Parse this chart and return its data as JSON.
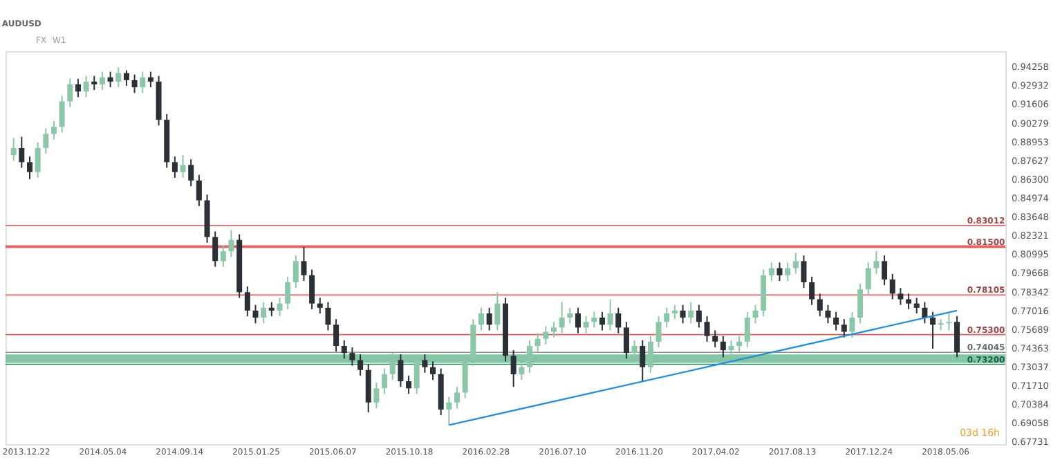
{
  "chart_data": {
    "type": "candlestick",
    "title": "AUDUSD",
    "annotations": [
      "FX",
      "W1",
      "03d 16h"
    ],
    "x": [
      "2013-12-01",
      "2013-12-15",
      "2013-12-29",
      "2014-01-12",
      "2014-01-26",
      "2014-02-09",
      "2014-02-23",
      "2014-03-09",
      "2014-03-23",
      "2014-04-06",
      "2014-04-20",
      "2014-05-04",
      "2014-05-18",
      "2014-06-01",
      "2014-06-15",
      "2014-06-29",
      "2014-07-13",
      "2014-07-27",
      "2014-08-10",
      "2014-08-24",
      "2014-09-07",
      "2014-09-21",
      "2014-10-05",
      "2014-10-19",
      "2014-11-02",
      "2014-11-16",
      "2014-11-30",
      "2014-12-14",
      "2014-12-28",
      "2015-01-11",
      "2015-01-25",
      "2015-02-08",
      "2015-02-22",
      "2015-03-08",
      "2015-03-22",
      "2015-04-05",
      "2015-04-19",
      "2015-05-03",
      "2015-05-17",
      "2015-05-31",
      "2015-06-14",
      "2015-06-28",
      "2015-07-12",
      "2015-07-26",
      "2015-08-09",
      "2015-08-23",
      "2015-09-06",
      "2015-09-20",
      "2015-10-04",
      "2015-10-18",
      "2015-11-01",
      "2015-11-15",
      "2015-11-29",
      "2015-12-13",
      "2015-12-27",
      "2016-01-10",
      "2016-01-24",
      "2016-02-07",
      "2016-02-21",
      "2016-03-06",
      "2016-03-20",
      "2016-04-03",
      "2016-04-17",
      "2016-05-01",
      "2016-05-15",
      "2016-05-29",
      "2016-06-12",
      "2016-06-26",
      "2016-07-10",
      "2016-07-24",
      "2016-08-07",
      "2016-08-21",
      "2016-09-04",
      "2016-09-18",
      "2016-10-02",
      "2016-10-16",
      "2016-10-30",
      "2016-11-13",
      "2016-11-27",
      "2016-12-11",
      "2016-12-25",
      "2017-01-08",
      "2017-01-22",
      "2017-02-05",
      "2017-02-19",
      "2017-03-05",
      "2017-03-19",
      "2017-04-02",
      "2017-04-16",
      "2017-04-30",
      "2017-05-14",
      "2017-05-28",
      "2017-06-11",
      "2017-06-25",
      "2017-07-09",
      "2017-07-23",
      "2017-08-06",
      "2017-08-20",
      "2017-09-03",
      "2017-09-17",
      "2017-10-01",
      "2017-10-15",
      "2017-10-29",
      "2017-11-12",
      "2017-11-26",
      "2017-12-10",
      "2017-12-24",
      "2018-01-07",
      "2018-01-21",
      "2018-02-04",
      "2018-02-18",
      "2018-03-04",
      "2018-03-18",
      "2018-04-01",
      "2018-04-15",
      "2018-04-29",
      "2018-05-13",
      "2018-05-27"
    ],
    "ohlc": [
      [
        0.88,
        0.892,
        0.876,
        0.885
      ],
      [
        0.885,
        0.893,
        0.871,
        0.875
      ],
      [
        0.875,
        0.879,
        0.863,
        0.868
      ],
      [
        0.868,
        0.889,
        0.864,
        0.885
      ],
      [
        0.885,
        0.899,
        0.881,
        0.895
      ],
      [
        0.895,
        0.904,
        0.891,
        0.9
      ],
      [
        0.9,
        0.922,
        0.896,
        0.918
      ],
      [
        0.918,
        0.934,
        0.914,
        0.93
      ],
      [
        0.93,
        0.934,
        0.921,
        0.925
      ],
      [
        0.925,
        0.936,
        0.921,
        0.932
      ],
      [
        0.932,
        0.936,
        0.926,
        0.93
      ],
      [
        0.93,
        0.939,
        0.926,
        0.935
      ],
      [
        0.935,
        0.939,
        0.928,
        0.932
      ],
      [
        0.932,
        0.942,
        0.928,
        0.938
      ],
      [
        0.938,
        0.94,
        0.929,
        0.933
      ],
      [
        0.933,
        0.937,
        0.924,
        0.928
      ],
      [
        0.928,
        0.939,
        0.924,
        0.935
      ],
      [
        0.935,
        0.939,
        0.928,
        0.932
      ],
      [
        0.932,
        0.936,
        0.901,
        0.905
      ],
      [
        0.905,
        0.909,
        0.871,
        0.875
      ],
      [
        0.875,
        0.879,
        0.864,
        0.868
      ],
      [
        0.868,
        0.88,
        0.864,
        0.873
      ],
      [
        0.873,
        0.877,
        0.858,
        0.862
      ],
      [
        0.862,
        0.866,
        0.844,
        0.848
      ],
      [
        0.848,
        0.852,
        0.818,
        0.822
      ],
      [
        0.822,
        0.826,
        0.801,
        0.805
      ],
      [
        0.805,
        0.816,
        0.801,
        0.812
      ],
      [
        0.812,
        0.827,
        0.808,
        0.82
      ],
      [
        0.82,
        0.824,
        0.779,
        0.783
      ],
      [
        0.783,
        0.787,
        0.766,
        0.77
      ],
      [
        0.77,
        0.774,
        0.761,
        0.765
      ],
      [
        0.765,
        0.776,
        0.761,
        0.772
      ],
      [
        0.772,
        0.776,
        0.766,
        0.77
      ],
      [
        0.77,
        0.779,
        0.766,
        0.775
      ],
      [
        0.775,
        0.794,
        0.771,
        0.79
      ],
      [
        0.79,
        0.809,
        0.786,
        0.805
      ],
      [
        0.805,
        0.815,
        0.791,
        0.795
      ],
      [
        0.795,
        0.799,
        0.771,
        0.775
      ],
      [
        0.775,
        0.779,
        0.768,
        0.772
      ],
      [
        0.772,
        0.776,
        0.756,
        0.76
      ],
      [
        0.76,
        0.764,
        0.741,
        0.745
      ],
      [
        0.745,
        0.749,
        0.736,
        0.74
      ],
      [
        0.74,
        0.744,
        0.731,
        0.735
      ],
      [
        0.735,
        0.739,
        0.724,
        0.728
      ],
      [
        0.728,
        0.732,
        0.698,
        0.705
      ],
      [
        0.705,
        0.719,
        0.701,
        0.715
      ],
      [
        0.715,
        0.729,
        0.711,
        0.725
      ],
      [
        0.725,
        0.74,
        0.721,
        0.735
      ],
      [
        0.735,
        0.739,
        0.716,
        0.72
      ],
      [
        0.72,
        0.724,
        0.711,
        0.715
      ],
      [
        0.715,
        0.739,
        0.711,
        0.735
      ],
      [
        0.735,
        0.739,
        0.726,
        0.73
      ],
      [
        0.73,
        0.734,
        0.721,
        0.725
      ],
      [
        0.725,
        0.729,
        0.696,
        0.7
      ],
      [
        0.7,
        0.709,
        0.689,
        0.705
      ],
      [
        0.705,
        0.716,
        0.701,
        0.712
      ],
      [
        0.712,
        0.739,
        0.708,
        0.735
      ],
      [
        0.735,
        0.764,
        0.731,
        0.76
      ],
      [
        0.76,
        0.772,
        0.756,
        0.768
      ],
      [
        0.768,
        0.772,
        0.756,
        0.76
      ],
      [
        0.76,
        0.783,
        0.756,
        0.775
      ],
      [
        0.775,
        0.779,
        0.734,
        0.738
      ],
      [
        0.738,
        0.742,
        0.716,
        0.725
      ],
      [
        0.725,
        0.734,
        0.721,
        0.73
      ],
      [
        0.73,
        0.749,
        0.726,
        0.745
      ],
      [
        0.745,
        0.754,
        0.741,
        0.75
      ],
      [
        0.75,
        0.759,
        0.746,
        0.755
      ],
      [
        0.755,
        0.762,
        0.751,
        0.758
      ],
      [
        0.758,
        0.776,
        0.754,
        0.765
      ],
      [
        0.765,
        0.772,
        0.761,
        0.768
      ],
      [
        0.768,
        0.772,
        0.754,
        0.758
      ],
      [
        0.758,
        0.766,
        0.754,
        0.762
      ],
      [
        0.762,
        0.769,
        0.758,
        0.765
      ],
      [
        0.765,
        0.769,
        0.756,
        0.76
      ],
      [
        0.76,
        0.778,
        0.756,
        0.768
      ],
      [
        0.768,
        0.772,
        0.754,
        0.758
      ],
      [
        0.758,
        0.762,
        0.736,
        0.74
      ],
      [
        0.74,
        0.749,
        0.736,
        0.745
      ],
      [
        0.745,
        0.749,
        0.72,
        0.73
      ],
      [
        0.73,
        0.752,
        0.726,
        0.748
      ],
      [
        0.748,
        0.766,
        0.744,
        0.762
      ],
      [
        0.762,
        0.772,
        0.758,
        0.768
      ],
      [
        0.768,
        0.774,
        0.764,
        0.77
      ],
      [
        0.77,
        0.774,
        0.761,
        0.765
      ],
      [
        0.765,
        0.776,
        0.761,
        0.77
      ],
      [
        0.77,
        0.774,
        0.758,
        0.762
      ],
      [
        0.762,
        0.766,
        0.748,
        0.752
      ],
      [
        0.752,
        0.756,
        0.744,
        0.748
      ],
      [
        0.748,
        0.752,
        0.737,
        0.742
      ],
      [
        0.742,
        0.749,
        0.738,
        0.745
      ],
      [
        0.745,
        0.752,
        0.741,
        0.748
      ],
      [
        0.748,
        0.769,
        0.744,
        0.765
      ],
      [
        0.765,
        0.774,
        0.761,
        0.77
      ],
      [
        0.77,
        0.799,
        0.766,
        0.795
      ],
      [
        0.795,
        0.804,
        0.791,
        0.8
      ],
      [
        0.8,
        0.804,
        0.791,
        0.795
      ],
      [
        0.795,
        0.804,
        0.791,
        0.8
      ],
      [
        0.8,
        0.811,
        0.796,
        0.805
      ],
      [
        0.805,
        0.809,
        0.786,
        0.79
      ],
      [
        0.79,
        0.794,
        0.774,
        0.778
      ],
      [
        0.778,
        0.782,
        0.766,
        0.77
      ],
      [
        0.77,
        0.774,
        0.761,
        0.765
      ],
      [
        0.765,
        0.769,
        0.756,
        0.76
      ],
      [
        0.76,
        0.764,
        0.751,
        0.755
      ],
      [
        0.755,
        0.769,
        0.751,
        0.765
      ],
      [
        0.765,
        0.789,
        0.761,
        0.785
      ],
      [
        0.785,
        0.804,
        0.781,
        0.8
      ],
      [
        0.8,
        0.812,
        0.796,
        0.805
      ],
      [
        0.805,
        0.809,
        0.788,
        0.792
      ],
      [
        0.792,
        0.796,
        0.778,
        0.782
      ],
      [
        0.782,
        0.786,
        0.774,
        0.778
      ],
      [
        0.778,
        0.782,
        0.771,
        0.775
      ],
      [
        0.775,
        0.779,
        0.768,
        0.772
      ],
      [
        0.772,
        0.776,
        0.761,
        0.765
      ],
      [
        0.765,
        0.769,
        0.743,
        0.76
      ],
      [
        0.76,
        0.764,
        0.756,
        0.761
      ],
      [
        0.761,
        0.768,
        0.756,
        0.762
      ],
      [
        0.762,
        0.766,
        0.737,
        0.7405
      ]
    ],
    "series": [
      {
        "type": "line",
        "color": "#2a8fd6",
        "x": [
          "2015-12-27",
          "2018-05-27"
        ],
        "values": [
          0.689,
          0.77
        ]
      }
    ],
    "ref_lines": [
      {
        "axis": "y",
        "value": 0.83012,
        "label": "0.83012",
        "color": "#e06060"
      },
      {
        "axis": "y",
        "value": 0.815,
        "label": "0.81500",
        "color": "#e06060"
      },
      {
        "axis": "y",
        "value": 0.78105,
        "label": "0.78105",
        "color": "#e06060"
      },
      {
        "axis": "y",
        "value": 0.753,
        "label": "0.75300",
        "color": "#e06060"
      },
      {
        "axis": "y",
        "value": 0.74045,
        "label": "0.74045",
        "color": "#8f969c"
      },
      {
        "axis": "y",
        "value": 0.732,
        "label": "0.73200",
        "color": "#1f8a5c"
      }
    ],
    "bands": [
      {
        "axis": "y",
        "from": 0.8142,
        "to": 0.8162,
        "color": "#e05050"
      },
      {
        "axis": "y",
        "from": 0.733,
        "to": 0.739,
        "color": "#6dbb95"
      }
    ],
    "xlim": [
      "2013-11-17",
      "2018-08-19"
    ],
    "xticks": [
      {
        "value": "2013-12-22",
        "label": "2013.12.22"
      },
      {
        "value": "2014-05-04",
        "label": "2014.05.04"
      },
      {
        "value": "2014-09-14",
        "label": "2014.09.14"
      },
      {
        "value": "2015-01-25",
        "label": "2015.01.25"
      },
      {
        "value": "2015-06-07",
        "label": "2015.06.07"
      },
      {
        "value": "2015-10-18",
        "label": "2015.10.18"
      },
      {
        "value": "2016-02-28",
        "label": "2016.02.28"
      },
      {
        "value": "2016-07-10",
        "label": "2016.07.10"
      },
      {
        "value": "2016-11-20",
        "label": "2016.11.20"
      },
      {
        "value": "2017-04-02",
        "label": "2017.04.02"
      },
      {
        "value": "2017-08-13",
        "label": "2017.08.13"
      },
      {
        "value": "2017-12-24",
        "label": "2017.12.24"
      },
      {
        "value": "2018-05-06",
        "label": "2018.05.06"
      }
    ],
    "ylim": [
      0.6755,
      0.9535
    ],
    "yticks": [
      {
        "value": 0.94258,
        "label": "0.94258"
      },
      {
        "value": 0.92932,
        "label": "0.92932"
      },
      {
        "value": 0.91606,
        "label": "0.91606"
      },
      {
        "value": 0.90279,
        "label": "0.90279"
      },
      {
        "value": 0.88953,
        "label": "0.88953"
      },
      {
        "value": 0.87627,
        "label": "0.87627"
      },
      {
        "value": 0.863,
        "label": "0.86300"
      },
      {
        "value": 0.84974,
        "label": "0.84974"
      },
      {
        "value": 0.83648,
        "label": "0.83648"
      },
      {
        "value": 0.82321,
        "label": "0.82321"
      },
      {
        "value": 0.80995,
        "label": "0.80995"
      },
      {
        "value": 0.79668,
        "label": "0.79668"
      },
      {
        "value": 0.78342,
        "label": "0.78342"
      },
      {
        "value": 0.77016,
        "label": "0.77016"
      },
      {
        "value": 0.75689,
        "label": "0.75689"
      },
      {
        "value": 0.74363,
        "label": "0.74363"
      },
      {
        "value": 0.73037,
        "label": "0.73037"
      },
      {
        "value": 0.7171,
        "label": "0.71710"
      },
      {
        "value": 0.70384,
        "label": "0.70384"
      },
      {
        "value": 0.69058,
        "label": "0.69058"
      },
      {
        "value": 0.67731,
        "label": "0.67731"
      }
    ],
    "grid": false,
    "legend": false
  }
}
